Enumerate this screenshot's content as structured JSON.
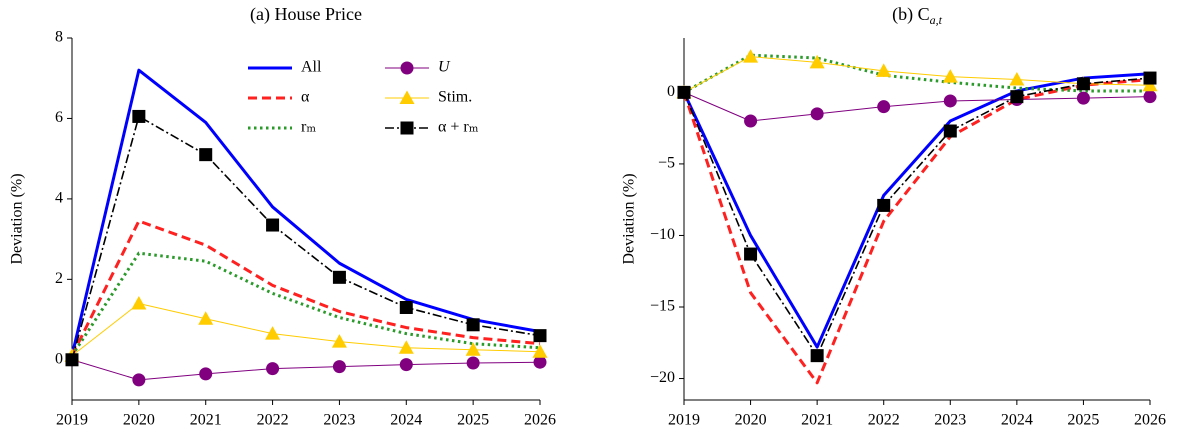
{
  "chart_data": [
    {
      "type": "line",
      "title": "(a) House Price",
      "y_label": "Deviation (%)",
      "x": [
        2019,
        2020,
        2021,
        2022,
        2023,
        2024,
        2025,
        2026
      ],
      "xlim": [
        2019,
        2026
      ],
      "xticks": [
        2019,
        2020,
        2021,
        2022,
        2023,
        2024,
        2025,
        2026
      ],
      "ylim": [
        -1,
        8
      ],
      "yticks": [
        0,
        2,
        4,
        6,
        8
      ],
      "legend": "upper right",
      "series": [
        {
          "name": "All",
          "color": "#0000ff",
          "linestyle": "solid",
          "marker": "none",
          "values": [
            0.1,
            7.2,
            5.9,
            3.8,
            2.4,
            1.5,
            1.0,
            0.7
          ]
        },
        {
          "name": "α",
          "color": "#ff2020",
          "linestyle": "dashed",
          "marker": "none",
          "values": [
            0.1,
            3.45,
            2.85,
            1.85,
            1.2,
            0.8,
            0.55,
            0.4
          ]
        },
        {
          "name": "rₘ",
          "color": "#2a9a2a",
          "linestyle": "dotted",
          "marker": "none",
          "values": [
            0.1,
            2.65,
            2.45,
            1.65,
            1.05,
            0.65,
            0.4,
            0.3
          ]
        },
        {
          "name": "U",
          "color": "#800080",
          "linestyle": "thin",
          "marker": "circle",
          "values": [
            0,
            -0.5,
            -0.35,
            -0.22,
            -0.17,
            -0.12,
            -0.08,
            -0.06
          ]
        },
        {
          "name": "Stim.",
          "color": "#ffcc00",
          "linestyle": "thin",
          "marker": "triangle",
          "values": [
            0.1,
            1.4,
            1.02,
            0.65,
            0.45,
            0.3,
            0.25,
            0.2
          ]
        },
        {
          "name": "α + rₘ",
          "color": "#000000",
          "linestyle": "dashdot",
          "marker": "square",
          "values": [
            0,
            6.05,
            5.1,
            3.35,
            2.05,
            1.3,
            0.87,
            0.6
          ]
        }
      ]
    },
    {
      "type": "line",
      "title": "(b) C",
      "title_subscript": "a,t",
      "y_label": "Deviation (%)",
      "x": [
        2019,
        2020,
        2021,
        2022,
        2023,
        2024,
        2025,
        2026
      ],
      "xlim": [
        2019,
        2026
      ],
      "xticks": [
        2019,
        2020,
        2021,
        2022,
        2023,
        2024,
        2025,
        2026
      ],
      "ylim": [
        -21.5,
        3.8
      ],
      "yticks": [
        {
          "value": -20,
          "label": "−20"
        },
        {
          "value": -15,
          "label": "−15"
        },
        {
          "value": -10,
          "label": "−10"
        },
        {
          "value": -5,
          "label": "−5"
        },
        0
      ],
      "series": [
        {
          "color": "#0000ff",
          "linestyle": "solid",
          "marker": "none",
          "values": [
            0,
            -10,
            -17.8,
            -7.2,
            -2.0,
            0.1,
            1.0,
            1.3
          ]
        },
        {
          "color": "#ff2020",
          "linestyle": "dashed",
          "marker": "none",
          "values": [
            0,
            -14,
            -20.3,
            -9,
            -3.1,
            -0.5,
            0.5,
            0.9
          ]
        },
        {
          "color": "#2a9a2a",
          "linestyle": "dotted",
          "marker": "none",
          "values": [
            0,
            2.6,
            2.4,
            1.2,
            0.7,
            0.3,
            0.1,
            0.1
          ]
        },
        {
          "color": "#800080",
          "linestyle": "thin",
          "marker": "circle",
          "values": [
            0,
            -2.0,
            -1.5,
            -1.0,
            -0.6,
            -0.5,
            -0.4,
            -0.3
          ]
        },
        {
          "color": "#ffcc00",
          "linestyle": "thin",
          "marker": "triangle",
          "values": [
            0,
            2.5,
            2.1,
            1.5,
            1.1,
            0.9,
            0.6,
            0.5
          ]
        },
        {
          "color": "#000000",
          "linestyle": "dashdot",
          "marker": "square",
          "values": [
            0,
            -11.3,
            -18.4,
            -7.9,
            -2.7,
            -0.3,
            0.6,
            1.0
          ]
        }
      ]
    }
  ]
}
